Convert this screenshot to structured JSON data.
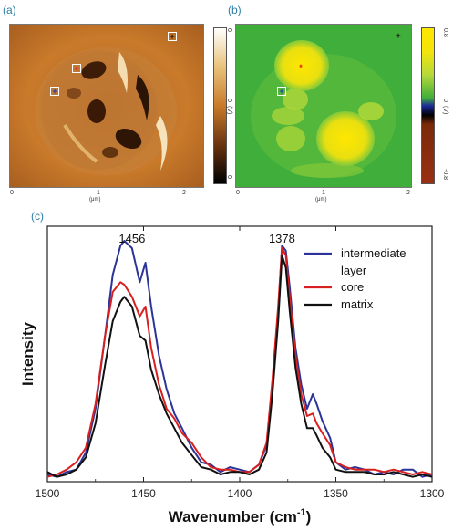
{
  "panels": {
    "a": {
      "letter": "(a)",
      "x_ticks": [
        "0",
        "1",
        "2"
      ],
      "x_unit": "(μm)",
      "colorbar_ticks": [
        "0",
        "0",
        "0"
      ],
      "colorbar_label": "(V)",
      "colormap": [
        "#ffffff",
        "#e8c27a",
        "#c97a2a",
        "#6a3410",
        "#000000"
      ]
    },
    "b": {
      "letter": "(b)",
      "x_ticks": [
        "0",
        "1",
        "2"
      ],
      "x_unit": "(μm)",
      "colorbar_ticks": [
        "0.8",
        "0",
        "-0.8"
      ],
      "colorbar_label": "(V)",
      "colormap": [
        "#ffe600",
        "#b6d93a",
        "#3fae3a",
        "#1c2a99",
        "#000000",
        "#7a2a0a",
        "#9a2f12"
      ]
    },
    "c": {
      "letter": "(c)"
    }
  },
  "markers": [
    {
      "name": "core",
      "color": "#e02020",
      "symbol": "+"
    },
    {
      "name": "intermediate-layer",
      "color": "#2a3aaa",
      "symbol": "+"
    },
    {
      "name": "matrix",
      "color": "#111111",
      "symbol": "+"
    }
  ],
  "chart_data": {
    "type": "line",
    "xlabel": "Wavenumber (cm",
    "xlabel_sup": "-1",
    "xlabel_close": ")",
    "ylabel": "Intensity",
    "xlim": [
      1500,
      1300
    ],
    "ylim": [
      0,
      1.05
    ],
    "x_ticks": [
      "1500",
      "1450",
      "1400",
      "1350",
      "1300"
    ],
    "x_tick_values": [
      1500,
      1450,
      1400,
      1350,
      1300
    ],
    "annotations": [
      {
        "text": "1456",
        "x": 1456
      },
      {
        "text": "1378",
        "x": 1378
      }
    ],
    "legend_position": "top-right",
    "series": [
      {
        "name": "intermediate",
        "name_line2": "layer",
        "color": "#2b3399",
        "x": [
          1500,
          1495,
          1490,
          1485,
          1480,
          1475,
          1470,
          1466,
          1462,
          1460,
          1456,
          1452,
          1449,
          1446,
          1442,
          1438,
          1434,
          1430,
          1425,
          1420,
          1415,
          1410,
          1405,
          1400,
          1395,
          1390,
          1386,
          1383,
          1380,
          1378,
          1376,
          1374,
          1371,
          1368,
          1365,
          1362,
          1360,
          1357,
          1353,
          1350,
          1345,
          1340,
          1335,
          1330,
          1325,
          1320,
          1315,
          1310,
          1305,
          1300
        ],
        "y": [
          0.03,
          0.02,
          0.04,
          0.05,
          0.12,
          0.3,
          0.6,
          0.85,
          0.97,
          0.99,
          0.96,
          0.82,
          0.9,
          0.72,
          0.52,
          0.38,
          0.28,
          0.22,
          0.14,
          0.08,
          0.07,
          0.04,
          0.06,
          0.05,
          0.04,
          0.07,
          0.15,
          0.4,
          0.7,
          0.97,
          0.95,
          0.8,
          0.55,
          0.4,
          0.3,
          0.36,
          0.32,
          0.25,
          0.18,
          0.08,
          0.05,
          0.06,
          0.05,
          0.03,
          0.04,
          0.03,
          0.05,
          0.05,
          0.02,
          0.03
        ]
      },
      {
        "name": "core",
        "color": "#d82020",
        "x": [
          1500,
          1495,
          1490,
          1485,
          1480,
          1475,
          1470,
          1466,
          1462,
          1460,
          1456,
          1452,
          1449,
          1446,
          1442,
          1438,
          1434,
          1430,
          1425,
          1420,
          1415,
          1410,
          1405,
          1400,
          1395,
          1390,
          1386,
          1383,
          1380,
          1378,
          1376,
          1374,
          1371,
          1368,
          1365,
          1362,
          1360,
          1357,
          1353,
          1350,
          1345,
          1340,
          1335,
          1330,
          1325,
          1320,
          1315,
          1310,
          1305,
          1300
        ],
        "y": [
          0.02,
          0.03,
          0.05,
          0.08,
          0.14,
          0.32,
          0.6,
          0.78,
          0.82,
          0.81,
          0.76,
          0.68,
          0.72,
          0.55,
          0.4,
          0.3,
          0.26,
          0.2,
          0.16,
          0.1,
          0.06,
          0.05,
          0.05,
          0.04,
          0.04,
          0.07,
          0.16,
          0.42,
          0.72,
          0.96,
          0.93,
          0.76,
          0.52,
          0.36,
          0.27,
          0.28,
          0.24,
          0.2,
          0.15,
          0.08,
          0.06,
          0.05,
          0.05,
          0.05,
          0.04,
          0.05,
          0.04,
          0.03,
          0.04,
          0.03
        ]
      },
      {
        "name": "matrix",
        "color": "#111111",
        "x": [
          1500,
          1495,
          1490,
          1485,
          1480,
          1475,
          1470,
          1466,
          1462,
          1460,
          1456,
          1452,
          1449,
          1446,
          1442,
          1438,
          1434,
          1430,
          1425,
          1420,
          1415,
          1410,
          1405,
          1400,
          1395,
          1390,
          1386,
          1383,
          1380,
          1378,
          1376,
          1374,
          1371,
          1368,
          1365,
          1362,
          1360,
          1357,
          1353,
          1350,
          1345,
          1340,
          1335,
          1330,
          1325,
          1320,
          1315,
          1310,
          1305,
          1300
        ],
        "y": [
          0.04,
          0.02,
          0.03,
          0.05,
          0.1,
          0.24,
          0.48,
          0.66,
          0.74,
          0.76,
          0.72,
          0.6,
          0.58,
          0.46,
          0.36,
          0.28,
          0.22,
          0.16,
          0.11,
          0.06,
          0.05,
          0.03,
          0.04,
          0.04,
          0.03,
          0.05,
          0.12,
          0.36,
          0.66,
          0.93,
          0.88,
          0.7,
          0.47,
          0.32,
          0.22,
          0.22,
          0.19,
          0.14,
          0.1,
          0.05,
          0.04,
          0.04,
          0.04,
          0.03,
          0.03,
          0.04,
          0.03,
          0.02,
          0.03,
          0.02
        ]
      }
    ]
  }
}
